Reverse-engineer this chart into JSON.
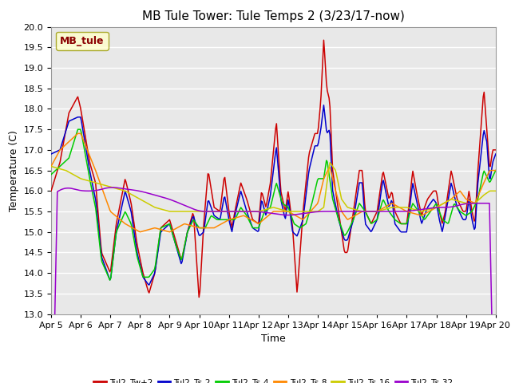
{
  "title": "MB Tule Tower: Tule Temps 2 (3/23/17-now)",
  "xlabel": "Time",
  "ylabel": "Temperature (C)",
  "ylim": [
    13.0,
    20.0
  ],
  "yticks": [
    13.0,
    13.5,
    14.0,
    14.5,
    15.0,
    15.5,
    16.0,
    16.5,
    17.0,
    17.5,
    18.0,
    18.5,
    19.0,
    19.5,
    20.0
  ],
  "xtick_labels": [
    "Apr 5",
    "Apr 6",
    "Apr 7",
    "Apr 8",
    "Apr 9",
    "Apr 10",
    "Apr 11",
    "Apr 12",
    "Apr 13",
    "Apr 14",
    "Apr 15",
    "Apr 16",
    "Apr 17",
    "Apr 18",
    "Apr 19",
    "Apr 20"
  ],
  "series_colors": [
    "#cc0000",
    "#0000cc",
    "#00cc00",
    "#ff8800",
    "#cccc00",
    "#9900cc"
  ],
  "series_labels": [
    "Tul2_Tw+2",
    "Tul2_Ts-2",
    "Tul2_Ts-4",
    "Tul2_Ts-8",
    "Tul2_Ts-16",
    "Tul2_Ts-32"
  ],
  "legend_label": "MB_tule",
  "plot_bg_color": "#e8e8e8",
  "grid_color": "#ffffff",
  "title_fontsize": 11,
  "axis_fontsize": 9,
  "tick_fontsize": 8
}
